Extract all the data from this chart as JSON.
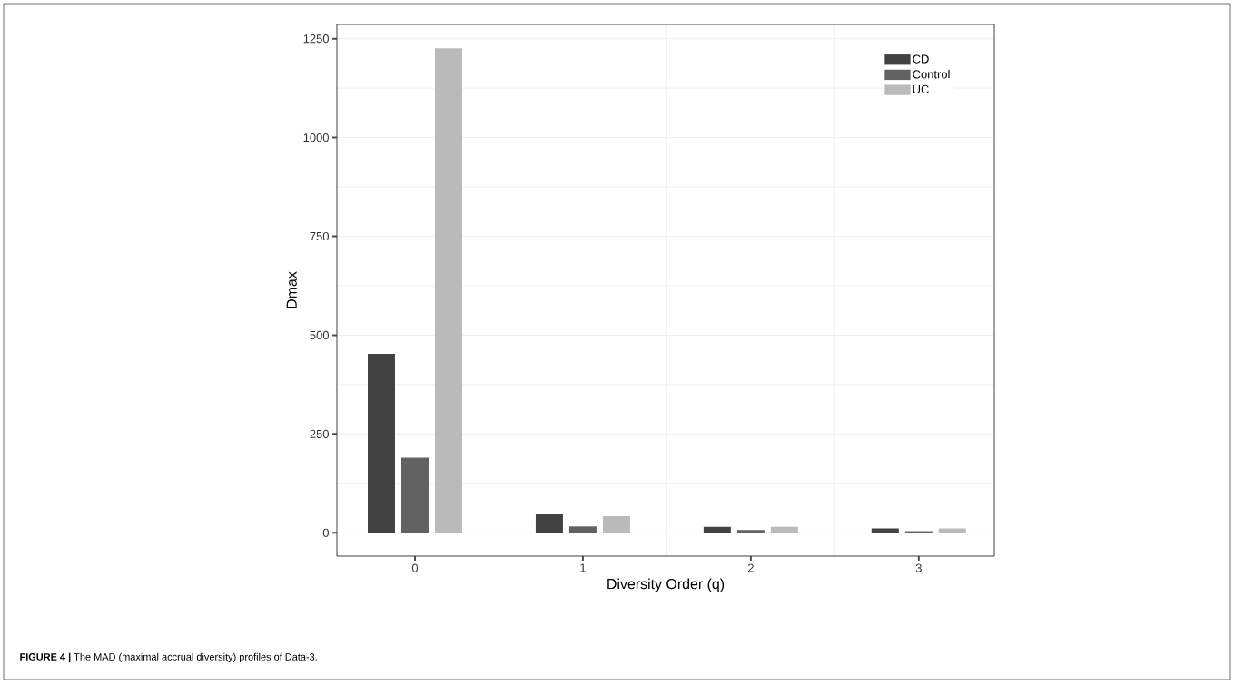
{
  "chart_data": {
    "type": "bar",
    "xlabel": "Diversity Order (q)",
    "ylabel": "Dmax",
    "categories": [
      "0",
      "1",
      "2",
      "3"
    ],
    "series": [
      {
        "name": "CD",
        "color": "#424242",
        "values": [
          453,
          48,
          15,
          11
        ]
      },
      {
        "name": "Control",
        "color": "#626262",
        "values": [
          190,
          16,
          7,
          4
        ]
      },
      {
        "name": "UC",
        "color": "#bababa",
        "values": [
          1226,
          42,
          15,
          11
        ]
      }
    ],
    "ylim": [
      -59,
      1286
    ],
    "yticks": [
      0,
      250,
      500,
      750,
      1000,
      1250
    ],
    "grid": true,
    "legend": "top right",
    "annotations": [
      "**FIGURE 4 |** The MAD (maximal accrual diversity) profiles of Data-3."
    ]
  }
}
